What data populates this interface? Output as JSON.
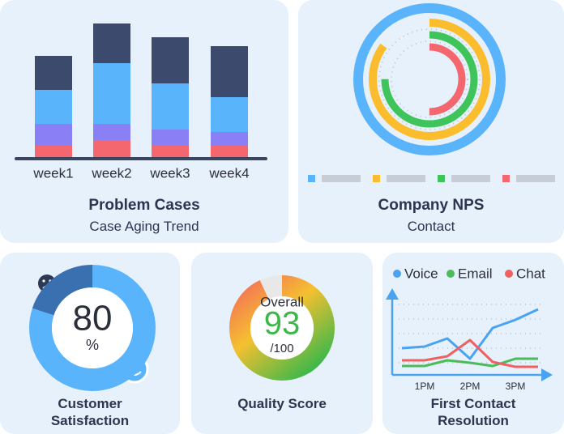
{
  "chart_data": [
    {
      "type": "bar",
      "title": "Problem Cases",
      "subtitle": "Case Aging Trend",
      "categories": [
        "week1",
        "week2",
        "week3",
        "week4"
      ],
      "series": [
        {
          "color": "#f4676e",
          "values": [
            15,
            21,
            15,
            14
          ]
        },
        {
          "color": "#8b7ff5",
          "values": [
            26,
            20,
            19,
            17
          ]
        },
        {
          "color": "#5ab4fb",
          "values": [
            42,
            75,
            57,
            43
          ]
        },
        {
          "color": "#3c4a6e",
          "values": [
            42,
            49,
            57,
            63
          ]
        }
      ],
      "ylim": [
        0,
        170
      ]
    },
    {
      "type": "radial_bar",
      "title": "Company NPS",
      "subtitle": "Contact",
      "series": [
        {
          "color": "#5ab4fb",
          "values": [
            100
          ]
        },
        {
          "color": "#fbbd2d",
          "values": [
            85
          ]
        },
        {
          "color": "#3ec45a",
          "values": [
            75
          ]
        },
        {
          "color": "#f4676e",
          "values": [
            50
          ]
        }
      ],
      "legend": "bottom"
    },
    {
      "type": "donut",
      "title": "Customer Satisfaction",
      "value": 80,
      "unit": "%",
      "color": "#5ab4fb",
      "rest_color": "#3a6fb0"
    },
    {
      "type": "gauge",
      "title": "Quality Score",
      "label": "Overall",
      "value": 93,
      "total": {
        "value": 100,
        "label": "/100"
      }
    },
    {
      "type": "line",
      "title": "First Contact Resolution",
      "categories": [
        null,
        "1PM",
        null,
        "2PM",
        null,
        "3PM",
        null
      ],
      "series": [
        {
          "name": "Voice",
          "color": "#4aa3f0",
          "values": [
            30,
            32,
            42,
            17,
            55,
            65,
            78
          ]
        },
        {
          "name": "Email",
          "color": "#4cbb5a",
          "values": [
            8,
            8,
            15,
            12,
            8,
            17,
            17
          ]
        },
        {
          "name": "Chat",
          "color": "#f06060",
          "values": [
            15,
            15,
            20,
            40,
            13,
            7,
            7
          ]
        }
      ],
      "ylim": [
        0,
        90
      ],
      "legend": "top"
    }
  ]
}
